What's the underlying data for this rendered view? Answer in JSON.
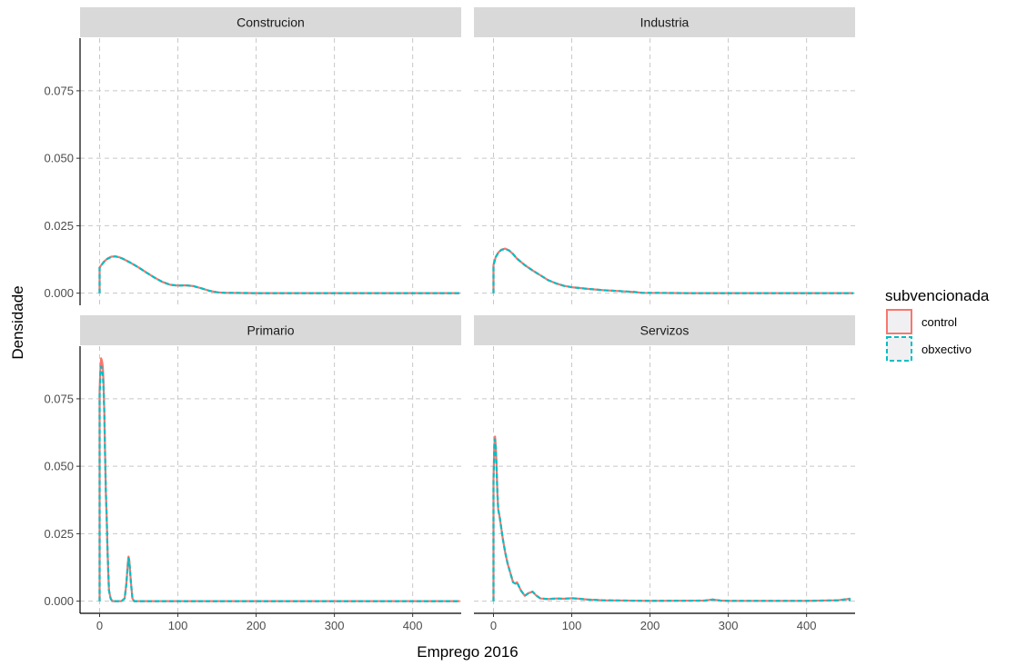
{
  "chart_data": {
    "type": "line",
    "xlabel": "Emprego 2016",
    "ylabel": "Densidade",
    "xlim": [
      -25,
      462
    ],
    "ylim": [
      -0.0045,
      0.0945
    ],
    "x_ticks": [
      0,
      100,
      200,
      300,
      400
    ],
    "x_tick_labels": [
      "0",
      "100",
      "200",
      "300",
      "400"
    ],
    "y_ticks": [
      0,
      0.025,
      0.05,
      0.075
    ],
    "y_tick_labels": [
      "0.000",
      "0.025",
      "0.050",
      "0.075"
    ],
    "grid": "major, dashed grey",
    "legend": {
      "title": "subvencionada",
      "position": "right",
      "entries": [
        {
          "label": "control",
          "color": "#F8766D",
          "linetype": "solid"
        },
        {
          "label": "obxectivo",
          "color": "#00BFC4",
          "linetype": "dashed"
        }
      ]
    },
    "panels": [
      {
        "name": "Construcion",
        "series": [
          {
            "name": "control",
            "x": [
              0,
              0,
              5,
              10,
              15,
              20,
              25,
              30,
              40,
              50,
              60,
              70,
              80,
              90,
              100,
              110,
              120,
              130,
              140,
              150,
              160,
              200,
              300,
              400,
              460,
              460
            ],
            "y": [
              0,
              0.0095,
              0.0115,
              0.0128,
              0.0135,
              0.0136,
              0.0133,
              0.0127,
              0.0112,
              0.0095,
              0.0076,
              0.0058,
              0.0042,
              0.0031,
              0.0028,
              0.0029,
              0.0026,
              0.0018,
              0.0009,
              0.0003,
              0.0001,
              0,
              0,
              0,
              0,
              0
            ]
          },
          {
            "name": "obxectivo",
            "x": [
              0,
              0,
              5,
              10,
              15,
              20,
              25,
              30,
              40,
              50,
              60,
              70,
              80,
              90,
              100,
              110,
              120,
              130,
              140,
              150,
              160,
              200,
              300,
              400,
              460,
              460
            ],
            "y": [
              0,
              0.0094,
              0.0114,
              0.0127,
              0.0134,
              0.0136,
              0.0133,
              0.0127,
              0.0112,
              0.0095,
              0.0076,
              0.0058,
              0.0042,
              0.0031,
              0.0028,
              0.0029,
              0.0026,
              0.0018,
              0.0009,
              0.0003,
              0.0001,
              0,
              0,
              0,
              0,
              0
            ]
          }
        ]
      },
      {
        "name": "Industria",
        "series": [
          {
            "name": "control",
            "x": [
              0,
              0,
              3,
              6,
              10,
              15,
              20,
              25,
              30,
              40,
              50,
              60,
              70,
              80,
              90,
              100,
              120,
              140,
              160,
              180,
              190,
              250,
              350,
              460,
              460
            ],
            "y": [
              0,
              0.0105,
              0.0135,
              0.015,
              0.0161,
              0.0165,
              0.0158,
              0.0145,
              0.0128,
              0.0104,
              0.0084,
              0.0066,
              0.0048,
              0.0036,
              0.0027,
              0.0022,
              0.0016,
              0.0011,
              0.0008,
              0.0004,
              0.0001,
              0,
              0,
              0,
              0
            ]
          },
          {
            "name": "obxectivo",
            "x": [
              0,
              0,
              3,
              6,
              10,
              15,
              20,
              25,
              30,
              40,
              50,
              60,
              70,
              80,
              90,
              100,
              120,
              140,
              160,
              180,
              190,
              250,
              350,
              460,
              460
            ],
            "y": [
              0,
              0.0104,
              0.0134,
              0.0149,
              0.016,
              0.0164,
              0.0158,
              0.0145,
              0.0128,
              0.0104,
              0.0084,
              0.0066,
              0.0048,
              0.0036,
              0.0027,
              0.0022,
              0.0016,
              0.0011,
              0.0008,
              0.0004,
              0.0001,
              0,
              0,
              0,
              0
            ]
          }
        ]
      },
      {
        "name": "Primario",
        "series": [
          {
            "name": "control",
            "x": [
              0,
              0,
              1,
              2,
              3,
              4,
              5,
              6,
              7,
              8,
              9,
              10,
              11,
              12,
              14,
              16,
              20,
              28,
              32,
              34,
              36,
              37,
              38,
              40,
              42,
              44,
              60,
              100,
              200,
              300,
              400,
              460,
              460
            ],
            "y": [
              0,
              0.078,
              0.086,
              0.09,
              0.089,
              0.087,
              0.081,
              0.07,
              0.055,
              0.04,
              0.031,
              0.02,
              0.011,
              0.004,
              0.001,
              0,
              0,
              0,
              0.001,
              0.006,
              0.014,
              0.0165,
              0.015,
              0.007,
              0.001,
              0,
              0,
              0,
              0,
              0,
              0,
              0,
              0
            ]
          },
          {
            "name": "obxectivo",
            "x": [
              0,
              0,
              1,
              2,
              3,
              4,
              5,
              6,
              7,
              8,
              9,
              10,
              11,
              12,
              14,
              16,
              20,
              28,
              32,
              34,
              36,
              37,
              38,
              40,
              42,
              44,
              60,
              100,
              200,
              300,
              400,
              460,
              460
            ],
            "y": [
              0,
              0.076,
              0.084,
              0.087,
              0.086,
              0.084,
              0.079,
              0.069,
              0.054,
              0.04,
              0.031,
              0.02,
              0.011,
              0.004,
              0.001,
              0,
              0,
              0,
              0.001,
              0.006,
              0.013,
              0.016,
              0.0145,
              0.007,
              0.001,
              0,
              0,
              0,
              0,
              0,
              0,
              0,
              0
            ]
          }
        ]
      },
      {
        "name": "Servizos",
        "series": [
          {
            "name": "control",
            "x": [
              0,
              0,
              1,
              2,
              3,
              4,
              5,
              6,
              8,
              10,
              12,
              15,
              18,
              20,
              25,
              28,
              30,
              35,
              40,
              45,
              50,
              55,
              60,
              70,
              80,
              90,
              100,
              110,
              120,
              140,
              200,
              270,
              280,
              290,
              300,
              400,
              440,
              450,
              455,
              455
            ],
            "y": [
              0,
              0.045,
              0.058,
              0.061,
              0.057,
              0.049,
              0.04,
              0.034,
              0.031,
              0.027,
              0.023,
              0.018,
              0.014,
              0.012,
              0.007,
              0.0065,
              0.007,
              0.004,
              0.002,
              0.003,
              0.0035,
              0.002,
              0.001,
              0.0008,
              0.001,
              0.0009,
              0.0011,
              0.0009,
              0.0006,
              0.0003,
              0.0001,
              0.0002,
              0.0006,
              0.0002,
              0.0001,
              0.0001,
              0.0003,
              0.0007,
              0.0009,
              0
            ]
          },
          {
            "name": "obxectivo",
            "x": [
              0,
              0,
              1,
              2,
              3,
              4,
              5,
              6,
              8,
              10,
              12,
              15,
              18,
              20,
              25,
              28,
              30,
              35,
              40,
              45,
              50,
              55,
              60,
              70,
              80,
              90,
              100,
              110,
              120,
              140,
              200,
              270,
              280,
              290,
              300,
              400,
              440,
              450,
              455,
              455
            ],
            "y": [
              0,
              0.044,
              0.056,
              0.06,
              0.056,
              0.048,
              0.04,
              0.034,
              0.031,
              0.027,
              0.023,
              0.018,
              0.014,
              0.012,
              0.007,
              0.0065,
              0.007,
              0.004,
              0.002,
              0.003,
              0.0035,
              0.002,
              0.001,
              0.0008,
              0.001,
              0.0009,
              0.0011,
              0.0009,
              0.0006,
              0.0003,
              0.0001,
              0.0002,
              0.0006,
              0.0002,
              0.0001,
              0.0001,
              0.0003,
              0.0007,
              0.0009,
              0
            ]
          }
        ]
      }
    ]
  }
}
